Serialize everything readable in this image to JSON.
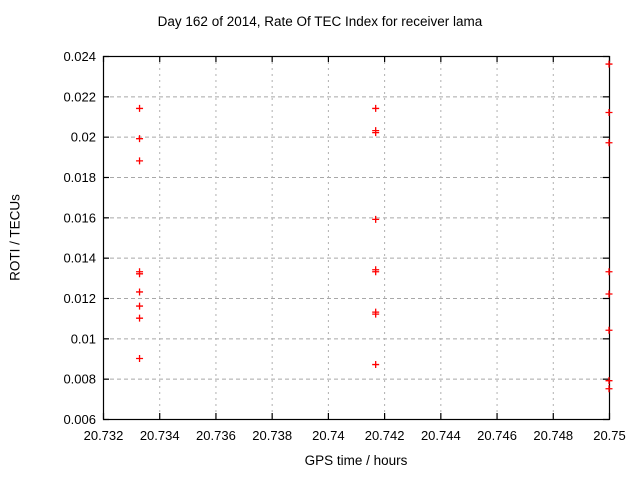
{
  "window": {
    "title": "Day 162 of 2014, Rate Of TEC Index for receiver lama"
  },
  "chart_data": {
    "type": "scatter",
    "title": "Day 162 of 2014, Rate Of TEC Index for receiver lama",
    "xlabel": "GPS time / hours",
    "ylabel": "ROTI / TECUs",
    "xlim": [
      20.732,
      20.75
    ],
    "ylim": [
      0.006,
      0.024
    ],
    "xticks": [
      20.732,
      20.734,
      20.736,
      20.738,
      20.74,
      20.742,
      20.744,
      20.746,
      20.748,
      20.75
    ],
    "xtick_labels": [
      "20.732",
      "20.734",
      "20.736",
      "20.738",
      "20.74",
      "20.742",
      "20.744",
      "20.746",
      "20.748",
      "20.75"
    ],
    "yticks": [
      0.006,
      0.008,
      0.01,
      0.012,
      0.014,
      0.016,
      0.018,
      0.02,
      0.022,
      0.024
    ],
    "ytick_labels": [
      "0.006",
      "0.008",
      "0.01",
      "0.012",
      "0.014",
      "0.016",
      "0.018",
      "0.02",
      "0.022",
      "0.024"
    ],
    "grid": true,
    "legend": "none",
    "marker": {
      "shape": "plus",
      "color": "#ff0000",
      "size": 7,
      "stroke_width": 1.3
    },
    "colors": {
      "border": "#000000",
      "grid_horizontal": "#a8a8a8",
      "grid_vertical": "#b0b0b0",
      "text": "#000000"
    },
    "series": [
      {
        "name": "ROTI",
        "points": [
          [
            20.7333,
            0.0214
          ],
          [
            20.7333,
            0.0199
          ],
          [
            20.7333,
            0.0188
          ],
          [
            20.7333,
            0.0133
          ],
          [
            20.7333,
            0.0132
          ],
          [
            20.7333,
            0.0123
          ],
          [
            20.7333,
            0.0116
          ],
          [
            20.7333,
            0.011
          ],
          [
            20.7333,
            0.009
          ],
          [
            20.7417,
            0.0214
          ],
          [
            20.7417,
            0.0203
          ],
          [
            20.7417,
            0.0202
          ],
          [
            20.7417,
            0.0159
          ],
          [
            20.7417,
            0.0134
          ],
          [
            20.7417,
            0.0133
          ],
          [
            20.7417,
            0.0113
          ],
          [
            20.7417,
            0.0112
          ],
          [
            20.7417,
            0.0087
          ],
          [
            20.75,
            0.0236
          ],
          [
            20.75,
            0.0212
          ],
          [
            20.75,
            0.0197
          ],
          [
            20.75,
            0.0133
          ],
          [
            20.75,
            0.0122
          ],
          [
            20.75,
            0.0104
          ],
          [
            20.75,
            0.0079
          ],
          [
            20.75,
            0.0075
          ]
        ]
      }
    ]
  }
}
